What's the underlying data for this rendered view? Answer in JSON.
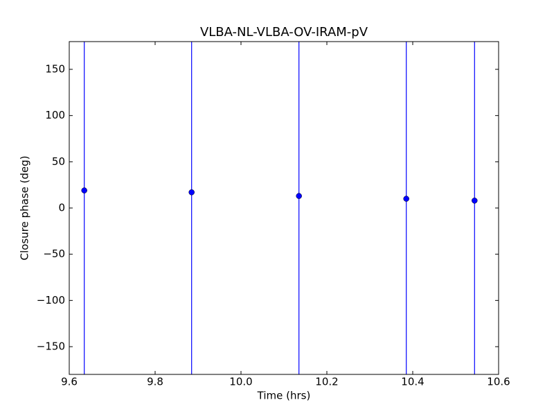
{
  "chart_data": {
    "type": "scatter",
    "title": "VLBA-NL-VLBA-OV-IRAM-pV",
    "x_label": "Time (hrs)",
    "y_label": "Closure phase (deg)",
    "x": [
      9.635,
      9.885,
      10.135,
      10.385,
      10.544
    ],
    "values": [
      19,
      17,
      13,
      10,
      8
    ],
    "errors": [
      200,
      200,
      200,
      200,
      200
    ],
    "color": "#0000ff",
    "xlim": [
      9.6,
      10.6
    ],
    "xticks": [
      9.6,
      9.8,
      {
        "value": 10.0,
        "label": "10.0"
      },
      10.2,
      10.4,
      10.6
    ],
    "ylim": [
      -180,
      180
    ],
    "yticks": [
      {
        "value": -150,
        "label": "−150"
      },
      {
        "value": -100,
        "label": "−100"
      },
      {
        "value": -50,
        "label": "−50"
      },
      0,
      50,
      100,
      150
    ]
  }
}
